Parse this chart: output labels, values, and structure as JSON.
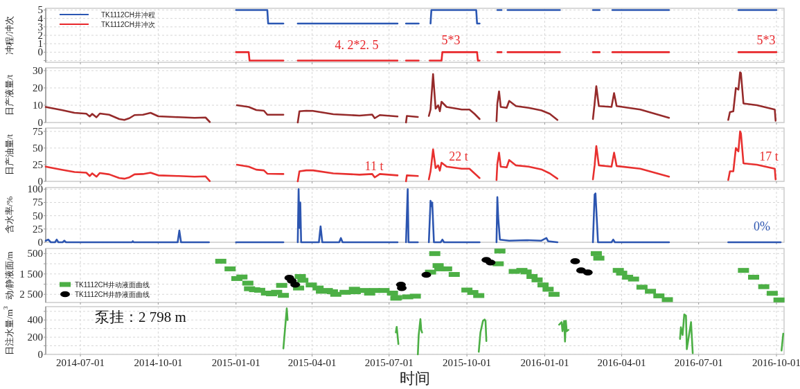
{
  "chart_data": [
    {
      "type": "line",
      "ylabel": "冲程/冲次",
      "xlim": [
        "2014-05-21",
        "2016-10-10"
      ],
      "ylim": [
        -1.2,
        5.2
      ],
      "yticks": [
        5,
        4,
        3,
        2,
        1,
        0,
        {
          "value": -1,
          "label": null
        }
      ],
      "xticks": [
        "2014-07-01",
        "2014-10-01",
        "2015-01-01",
        "2015-04-01",
        "2015-07-01",
        "2015-10-01",
        "2016-01-01",
        "2016-04-01",
        "2016-07-01",
        "2016-10-01"
      ],
      "tick_labels": "y",
      "grid": true,
      "legend": "top left",
      "series": [
        {
          "name": "TK1112CH井冲程",
          "color": "#2b57b3",
          "x": [
            "2015-01-01",
            "2015-02-07",
            "2015-02-08",
            "2015-02-26",
            null,
            "2015-03-15",
            "2015-07-11",
            null,
            "2015-07-21",
            "2015-08-05",
            null,
            "2015-08-19",
            "2015-08-20",
            "2015-10-12",
            "2015-10-13",
            "2015-10-16",
            null,
            "2015-11-06",
            "2015-11-11",
            null,
            "2015-11-18",
            "2016-01-19",
            null,
            "2016-02-27",
            "2016-03-06",
            null,
            "2016-03-21",
            "2016-05-27",
            null,
            "2016-08-17",
            "2016-10-01"
          ],
          "values": [
            5,
            5,
            3.4,
            3.4,
            null,
            3.4,
            3.4,
            null,
            3.4,
            3.4,
            null,
            3.4,
            5,
            5,
            3.4,
            3.4,
            null,
            5,
            5,
            null,
            5,
            5,
            null,
            5,
            5,
            null,
            5,
            5,
            null,
            5,
            5
          ]
        },
        {
          "name": "TK1112CH井冲次",
          "color": "#e8262a",
          "x": [
            "2015-01-01",
            "2015-01-16",
            "2015-01-17",
            "2015-02-26",
            null,
            "2015-03-15",
            "2015-07-11",
            null,
            "2015-07-21",
            "2015-08-05",
            null,
            "2015-08-18",
            "2015-09-01",
            "2015-09-02",
            "2015-10-13",
            "2015-10-14",
            "2015-10-16",
            null,
            "2015-11-06",
            "2015-11-11",
            null,
            "2015-11-18",
            "2016-01-19",
            null,
            "2016-02-27",
            "2016-03-06",
            null,
            "2016-03-21",
            "2016-05-27",
            null,
            "2016-08-17",
            "2016-10-01"
          ],
          "values": [
            0,
            0,
            -1,
            -1,
            null,
            -1,
            -1,
            null,
            -1,
            -1,
            null,
            -1,
            -1,
            0,
            0,
            -1,
            -1,
            null,
            0,
            0,
            null,
            0,
            0,
            null,
            0,
            0,
            null,
            0,
            0,
            null,
            0,
            0
          ]
        }
      ],
      "annotations": [
        "4. 2*2. 5",
        "5*3",
        "5*3"
      ]
    },
    {
      "type": "line",
      "ylabel": "日产液量/t",
      "xlim": [
        "2014-05-21",
        "2016-10-10"
      ],
      "ylim": [
        0,
        31.6
      ],
      "yticks": [
        0,
        10,
        20,
        30
      ],
      "xticks": [
        "2014-07-01",
        "2014-10-01",
        "2015-01-01",
        "2015-04-01",
        "2015-07-01",
        "2015-10-01",
        "2016-01-01",
        "2016-04-01",
        "2016-07-01",
        "2016-10-01"
      ],
      "tick_labels": "y",
      "grid": true,
      "series": [
        {
          "color": "#952a2a",
          "x": [
            "2014-05-21",
            "2014-05-25",
            "2014-06-09",
            "2014-06-24",
            "2014-07-08",
            "2014-07-12",
            "2014-07-15",
            "2014-07-20",
            "2014-07-24",
            "2014-08-04",
            "2014-08-16",
            "2014-08-22",
            "2014-08-28",
            "2014-09-03",
            "2014-09-13",
            "2014-09-22",
            "2014-10-01",
            "2014-10-25",
            "2014-11-13",
            "2014-11-26",
            "2014-12-01",
            null,
            "2015-01-02",
            "2015-01-16",
            "2015-01-25",
            "2015-02-03",
            "2015-02-07",
            "2015-02-26",
            null,
            "2015-03-15",
            "2015-03-17",
            "2015-03-25",
            "2015-04-02",
            "2015-04-26",
            "2015-05-27",
            "2015-06-11",
            "2015-06-14",
            "2015-06-20",
            "2015-07-11",
            null,
            "2015-07-21",
            "2015-07-22",
            "2015-08-04",
            null,
            "2015-08-17",
            "2015-08-19",
            "2015-08-22",
            "2015-08-25",
            "2015-08-28",
            "2015-08-30",
            "2015-09-01",
            "2015-09-07",
            "2015-09-13",
            "2015-09-25",
            "2015-10-04",
            "2015-10-10",
            "2015-10-16",
            null,
            "2015-11-05",
            "2015-11-06",
            "2015-11-08",
            "2015-11-10",
            "2015-11-17",
            "2015-11-20",
            "2015-11-28",
            "2015-12-13",
            "2015-12-28",
            "2016-01-07",
            "2016-01-16",
            null,
            "2016-02-27",
            "2016-02-29",
            "2016-03-02",
            "2016-03-05",
            "2016-03-20",
            "2016-03-23",
            "2016-03-26",
            "2016-04-23",
            "2016-05-27",
            null,
            "2016-08-05",
            "2016-08-07",
            "2016-08-11",
            "2016-08-14",
            "2016-08-17",
            "2016-08-19",
            "2016-08-20",
            "2016-08-23",
            "2016-09-08",
            "2016-09-29",
            "2016-09-30"
          ],
          "values": [
            9,
            8.6,
            7.2,
            5.6,
            5.1,
            3.5,
            5,
            3,
            5.2,
            4.5,
            2,
            1.5,
            2.5,
            4.3,
            4.5,
            5.6,
            3.6,
            3.1,
            2.7,
            2.9,
            0.3,
            null,
            10,
            9,
            7.2,
            6.8,
            4.5,
            4.5,
            null,
            0,
            6.5,
            6.8,
            6.7,
            4.8,
            4,
            4.6,
            2.5,
            4.3,
            3.5,
            null,
            0,
            3.8,
            3.2,
            null,
            3.8,
            7.5,
            28,
            8,
            10,
            6.5,
            12,
            9,
            8.5,
            7.5,
            7.5,
            5,
            2,
            null,
            0.8,
            11,
            18,
            9,
            8.5,
            12.5,
            9.5,
            8.5,
            7,
            5,
            1.5,
            null,
            2,
            11,
            21,
            9.5,
            9,
            17,
            9.5,
            7.5,
            2.7,
            null,
            1.5,
            6,
            6.5,
            20,
            19,
            29,
            28.5,
            11,
            10,
            7.5,
            1
          ]
        }
      ]
    },
    {
      "type": "line",
      "ylabel": "日产油量/t",
      "xlim": [
        "2014-05-21",
        "2016-10-10"
      ],
      "ylim": [
        0,
        80
      ],
      "yticks": [
        0,
        25,
        50,
        75
      ],
      "xticks": [
        "2014-07-01",
        "2014-10-01",
        "2015-01-01",
        "2015-04-01",
        "2015-07-01",
        "2015-10-01",
        "2016-01-01",
        "2016-04-01",
        "2016-07-01",
        "2016-10-01"
      ],
      "tick_labels": "y",
      "grid": true,
      "series": [
        {
          "color": "#e8302f",
          "x": [
            "2014-05-21",
            "2014-05-25",
            "2014-06-09",
            "2014-06-24",
            "2014-07-08",
            "2014-07-12",
            "2014-07-15",
            "2014-07-20",
            "2014-07-24",
            "2014-08-04",
            "2014-08-16",
            "2014-08-22",
            "2014-08-28",
            "2014-09-03",
            "2014-09-13",
            "2014-09-22",
            "2014-10-01",
            "2014-10-25",
            "2014-11-13",
            "2014-11-26",
            "2014-12-01",
            null,
            "2015-01-02",
            "2015-01-16",
            "2015-01-25",
            "2015-02-03",
            "2015-02-07",
            "2015-02-26",
            null,
            "2015-03-15",
            "2015-03-17",
            "2015-03-25",
            "2015-04-02",
            "2015-04-26",
            "2015-05-27",
            "2015-06-11",
            "2015-06-14",
            "2015-06-20",
            "2015-07-11",
            null,
            "2015-07-21",
            "2015-07-22",
            "2015-08-04",
            null,
            "2015-08-17",
            "2015-08-19",
            "2015-08-22",
            "2015-08-25",
            "2015-08-28",
            "2015-08-30",
            "2015-09-01",
            "2015-09-07",
            "2015-09-13",
            "2015-09-25",
            "2015-10-04",
            "2015-10-10",
            "2015-10-16",
            null,
            "2015-11-05",
            "2015-11-06",
            "2015-11-08",
            "2015-11-10",
            "2015-11-17",
            "2015-11-20",
            "2015-11-28",
            "2015-12-13",
            "2015-12-28",
            "2016-01-07",
            "2016-01-16",
            null,
            "2016-02-27",
            "2016-02-29",
            "2016-03-02",
            "2016-03-05",
            "2016-03-20",
            "2016-03-23",
            "2016-03-26",
            "2016-04-23",
            "2016-05-27",
            null,
            "2016-08-05",
            "2016-08-07",
            "2016-08-11",
            "2016-08-14",
            "2016-08-17",
            "2016-08-19",
            "2016-08-20",
            "2016-08-23",
            "2016-09-08",
            "2016-09-29",
            "2016-09-30"
          ],
          "values": [
            22,
            21,
            17.5,
            14,
            13,
            8,
            12,
            7,
            12.5,
            10.5,
            5,
            4,
            6,
            10.5,
            11,
            13,
            9,
            8,
            7,
            7.5,
            0.5,
            null,
            25,
            22,
            17.5,
            16.5,
            11.5,
            11,
            null,
            0,
            15,
            16.5,
            16.5,
            12,
            10,
            11,
            6,
            11,
            9,
            null,
            0,
            9,
            8,
            null,
            3,
            15,
            48,
            20,
            24,
            16,
            28,
            22,
            21,
            19,
            19,
            12,
            5,
            null,
            2,
            26,
            43,
            22,
            21,
            32,
            24,
            22,
            18,
            12,
            4,
            null,
            3,
            24,
            53,
            24,
            22,
            43,
            23,
            19,
            7,
            null,
            2,
            15,
            15,
            50,
            45,
            75,
            72,
            27,
            25,
            19,
            3
          ]
        }
      ],
      "annotations": [
        "11 t",
        "22 t",
        "17 t"
      ]
    },
    {
      "type": "line",
      "ylabel": "含水率/%",
      "xlim": [
        "2014-05-21",
        "2016-10-10"
      ],
      "ylim": [
        0,
        103
      ],
      "yticks": [
        0,
        25,
        50,
        75,
        100
      ],
      "xticks": [
        "2014-07-01",
        "2014-10-01",
        "2015-01-01",
        "2015-04-01",
        "2015-07-01",
        "2015-10-01",
        "2016-01-01",
        "2016-04-01",
        "2016-07-01",
        "2016-10-01"
      ],
      "tick_labels": "y",
      "grid": true,
      "series": [
        {
          "color": "#2c55b0",
          "x": [
            "2014-05-21",
            "2014-05-24",
            "2014-05-27",
            "2014-06-01",
            "2014-06-03",
            "2014-06-05",
            "2014-06-10",
            "2014-06-12",
            "2014-06-14",
            "2014-08-31",
            "2014-09-01",
            "2014-09-02",
            "2014-10-24",
            "2014-10-26",
            "2014-10-28",
            "2014-11-30",
            null,
            "2015-01-01",
            "2015-02-26",
            null,
            "2015-03-15",
            "2015-03-16",
            "2015-03-17",
            "2015-03-18",
            "2015-03-19",
            "2015-04-09",
            "2015-04-11",
            "2015-04-13",
            "2015-05-03",
            "2015-05-05",
            "2015-05-07",
            "2015-07-11",
            null,
            "2015-07-21",
            "2015-07-23",
            "2015-07-24",
            "2015-08-04",
            null,
            "2015-08-17",
            "2015-08-19",
            "2015-08-20",
            "2015-08-21",
            "2015-08-23",
            "2015-08-31",
            "2015-09-02",
            "2015-09-04",
            "2015-10-16",
            null,
            "2015-11-05",
            "2015-11-06",
            "2015-11-07",
            "2015-11-09",
            "2015-11-20",
            "2015-12-10",
            "2015-12-28",
            "2016-01-03",
            "2016-01-05",
            "2016-01-16",
            null,
            "2016-02-27",
            "2016-02-29",
            "2016-03-01",
            "2016-03-04",
            "2016-03-20",
            "2016-03-22",
            "2016-03-24",
            "2016-05-27",
            null,
            "2016-08-05",
            "2016-10-06"
          ],
          "values": [
            3,
            5,
            0,
            0,
            5,
            0,
            0,
            3,
            0,
            0,
            2,
            0,
            0,
            22,
            0,
            0,
            null,
            0,
            0,
            null,
            0,
            100,
            27,
            75,
            0,
            0,
            30,
            0,
            0,
            8,
            0,
            0,
            null,
            0,
            100,
            0,
            0,
            null,
            0,
            78,
            68,
            75,
            0,
            0,
            5,
            0,
            0,
            null,
            0,
            85,
            47,
            5,
            3,
            4,
            3,
            8,
            2,
            0,
            null,
            0,
            90,
            92,
            0,
            0,
            5,
            0,
            0,
            null,
            0,
            0
          ]
        }
      ],
      "annotations": [
        "0%"
      ]
    },
    {
      "type": "scatter",
      "ylabel": "动/静液面/m",
      "xlim": [
        "2014-05-21",
        "2016-10-10"
      ],
      "ylim": [
        2900,
        250
      ],
      "yticks": [
        500,
        {
          "value": 1000,
          "label": null
        },
        {
          "value": 1500,
          "label": "1 500"
        },
        {
          "value": 2000,
          "label": null
        },
        {
          "value": 2500,
          "label": "2 500"
        }
      ],
      "xticks": [
        "2014-07-01",
        "2014-10-01",
        "2015-01-01",
        "2015-04-01",
        "2015-07-01",
        "2015-10-01",
        "2016-01-01",
        "2016-04-01",
        "2016-07-01",
        "2016-10-01"
      ],
      "tick_labels": "y",
      "grid": true,
      "legend": "bottom left",
      "series": [
        {
          "name": "TK1112CH井动液面曲线",
          "color": "#4caf45",
          "marker": "square",
          "x": [
            "2014-12-14",
            "2014-12-25",
            "2015-01-02",
            "2015-01-08",
            "2015-01-15",
            "2015-01-17",
            "2015-01-23",
            "2015-01-29",
            "2015-02-06",
            "2015-02-12",
            "2015-02-18",
            "2015-02-26",
            "2015-02-24",
            "2015-03-16",
            "2015-03-18",
            "2015-03-21",
            "2015-03-31",
            "2015-04-08",
            "2015-04-12",
            "2015-04-19",
            "2015-04-25",
            "2015-04-29",
            "2015-05-10",
            "2015-05-21",
            "2015-05-22",
            "2015-06-02",
            "2015-06-08",
            "2015-06-14",
            "2015-06-25",
            "2015-07-05",
            "2015-07-09",
            "2015-07-10",
            "2015-07-23",
            "2015-08-01",
            "2015-08-19",
            "2015-08-24",
            "2015-08-28",
            "2015-08-30",
            "2015-09-07",
            "2015-09-16",
            "2015-10-01",
            "2015-10-08",
            "2015-10-15",
            "2015-11-07",
            "2015-11-09",
            "2015-11-26",
            "2015-12-05",
            "2015-12-10",
            "2015-12-17",
            "2015-12-23",
            "2015-12-30",
            "2016-01-05",
            "2016-01-12",
            "2016-03-02",
            "2016-03-05",
            "2016-03-28",
            "2016-04-01",
            "2016-04-08",
            "2016-04-15",
            "2016-04-25",
            "2016-05-05",
            "2016-05-15",
            "2016-05-25",
            "2016-08-23",
            "2016-09-04",
            "2016-09-16",
            "2016-09-26",
            "2016-10-04"
          ],
          "values": [
            875,
            1250,
            1725,
            1650,
            1950,
            2225,
            2275,
            2300,
            2440,
            2475,
            2400,
            2550,
            2060,
            2190,
            1625,
            1810,
            2040,
            2190,
            2350,
            2310,
            2375,
            2500,
            2400,
            2250,
            2375,
            2310,
            2440,
            2310,
            2310,
            2440,
            2690,
            2660,
            2625,
            2590,
            1410,
            500,
            1090,
            1250,
            1250,
            1525,
            2290,
            2410,
            2560,
            1000,
            375,
            1375,
            1325,
            1400,
            1625,
            1790,
            2040,
            2250,
            2500,
            500,
            725,
            1325,
            1460,
            1660,
            1750,
            2150,
            2350,
            2575,
            2760,
            1325,
            1660,
            2125,
            2450,
            2775
          ]
        },
        {
          "name": "TK1112CH井静液面曲线",
          "color": "#000000",
          "marker": "circle",
          "x": [
            "2015-03-05",
            "2015-03-08",
            "2015-03-12",
            "2015-07-15",
            "2015-07-16",
            "2015-08-14",
            "2015-10-24",
            "2015-10-29",
            "2016-02-06",
            "2016-02-13",
            "2016-02-21"
          ],
          "values": [
            1690,
            1840,
            2025,
            2025,
            2190,
            1540,
            810,
            940,
            875,
            1325,
            1425
          ]
        }
      ]
    },
    {
      "type": "line",
      "ylabel": "日注水量/m$^{3}$",
      "xlabel": "时间",
      "xlim": [
        "2014-05-21",
        "2016-10-10"
      ],
      "ylim": [
        0,
        555
      ],
      "yticks": [
        0,
        {
          "value": 100,
          "label": null
        },
        200,
        {
          "value": 300,
          "label": null
        },
        400,
        {
          "value": 500,
          "label": null
        }
      ],
      "xticks": [
        "2014-07-01",
        "2014-10-01",
        "2015-01-01",
        "2015-04-01",
        "2015-07-01",
        "2015-10-01",
        "2016-01-01",
        "2016-04-01",
        "2016-07-01",
        "2016-10-01"
      ],
      "grid": true,
      "series": [
        {
          "color": "#4caf45",
          "x": [
            "2015-02-26",
            "2015-03-02",
            "2015-03-03",
            null,
            "2015-07-09",
            "2015-07-10",
            "2015-07-12",
            null,
            "2015-08-04",
            "2015-08-05",
            "2015-08-07",
            "2015-08-08",
            "2015-08-09",
            null,
            "2015-10-15",
            "2015-10-17",
            "2015-10-18",
            "2015-10-20",
            "2015-10-22",
            "2015-10-23",
            "2015-10-24",
            null,
            "2016-01-18",
            "2016-01-21",
            "2016-01-22",
            "2016-01-24",
            "2016-01-25",
            "2016-01-26",
            "2016-01-27",
            "2016-01-29",
            null,
            "2016-06-09",
            "2016-06-10",
            "2016-06-12",
            "2016-06-14",
            "2016-06-16",
            "2016-06-17",
            "2016-06-22",
            "2016-06-24",
            null,
            "2016-10-07",
            "2016-10-09"
          ],
          "values": [
            69,
            534,
            399,
            null,
            255,
            320,
            120,
            null,
            0,
            225,
            410,
            285,
            255,
            null,
            30,
            255,
            300,
            390,
            405,
            390,
            155,
            null,
            345,
            375,
            270,
            390,
            150,
            390,
            270,
            285,
            null,
            180,
            315,
            225,
            465,
            450,
            60,
            375,
            15,
            null,
            45,
            240
          ]
        }
      ],
      "annotations": [
        "泵挂：2 798 m"
      ]
    }
  ]
}
